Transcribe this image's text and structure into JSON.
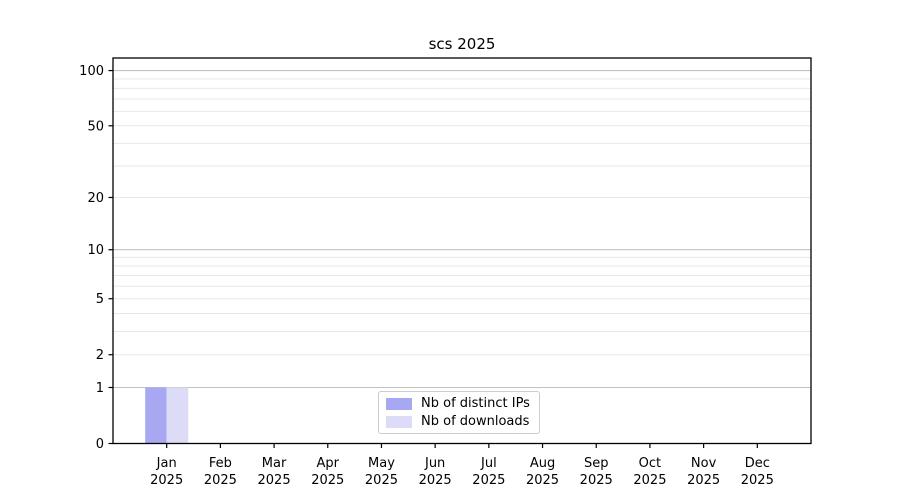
{
  "chart_data": {
    "type": "bar",
    "title": "scs 2025",
    "categories": [
      "Jan",
      "Feb",
      "Mar",
      "Apr",
      "May",
      "Jun",
      "Jul",
      "Aug",
      "Sep",
      "Oct",
      "Nov",
      "Dec"
    ],
    "category_year": "2025",
    "series": [
      {
        "name": "Nb of distinct IPs",
        "color": "#a8a8f2",
        "values": [
          1,
          0,
          0,
          0,
          0,
          0,
          0,
          0,
          0,
          0,
          0,
          0
        ]
      },
      {
        "name": "Nb of downloads",
        "color": "#dcdcf6",
        "values": [
          1,
          0,
          0,
          0,
          0,
          0,
          0,
          0,
          0,
          0,
          0,
          0
        ]
      }
    ],
    "yscale": "log1p",
    "ylim": [
      0,
      117
    ],
    "yticks": [
      0,
      1,
      2,
      5,
      10,
      20,
      50,
      100
    ],
    "major_gridlines": [
      1,
      10,
      100
    ],
    "minor_gridlines": [
      2,
      3,
      4,
      5,
      6,
      7,
      8,
      9,
      20,
      30,
      40,
      50,
      60,
      70,
      80,
      90
    ],
    "grid": true,
    "legend_position": "lower center",
    "xlabel": "",
    "ylabel": "",
    "colors": {
      "axis": "#000000",
      "text": "#000000",
      "major_grid": "#c2c2c2",
      "minor_grid": "#e8e8e8",
      "legend_border": "#cccccc",
      "legend_bg": "#ffffff"
    }
  }
}
